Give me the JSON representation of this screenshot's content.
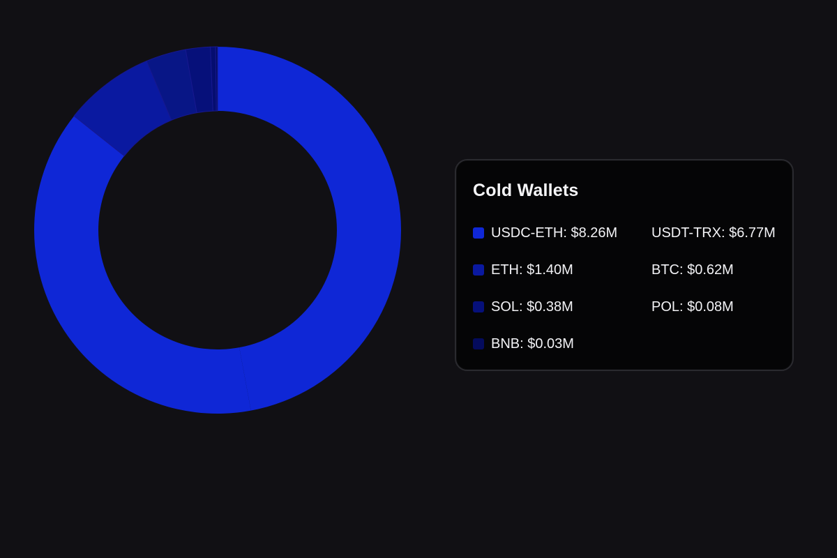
{
  "chart_data": {
    "type": "pie",
    "variant": "donut",
    "title": "Cold Wallets",
    "legend_placement": "right",
    "series": [
      {
        "slices": [
          {
            "label": "USDC-ETH",
            "display_label": "USDC-ETH: $8.26M",
            "value": 8.26,
            "color": "#0f27d6",
            "show_swatch": true
          },
          {
            "label": "USDT-TRX",
            "display_label": "USDT-TRX: $6.77M",
            "value": 6.77,
            "color": "#0f27d6",
            "show_swatch": false
          },
          {
            "label": "ETH",
            "display_label": "ETH: $1.40M",
            "value": 1.4,
            "color": "#0a19a0",
            "show_swatch": true
          },
          {
            "label": "BTC",
            "display_label": "BTC: $0.62M",
            "value": 0.62,
            "color": "#081686",
            "show_swatch": false
          },
          {
            "label": "SOL",
            "display_label": "SOL: $0.38M",
            "value": 0.38,
            "color": "#06107a",
            "show_swatch": true
          },
          {
            "label": "POL",
            "display_label": "POL: $0.08M",
            "value": 0.08,
            "color": "#050d70",
            "show_swatch": false
          },
          {
            "label": "BNB",
            "display_label": "BNB: $0.03M",
            "value": 0.03,
            "color": "#040b5d",
            "show_swatch": true
          }
        ]
      }
    ],
    "background_color": "#111014",
    "card_background_color": "#050506",
    "card_border_color": "#2a2a2f",
    "text_color": "#f2f2f5"
  }
}
